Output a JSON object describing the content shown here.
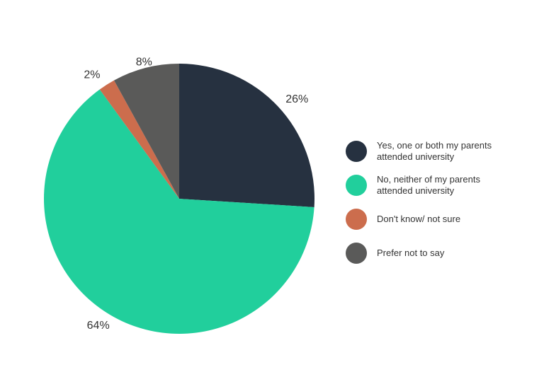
{
  "chart_data": {
    "type": "pie",
    "slices": [
      {
        "label": "Yes, one or both my parents\nattended university",
        "value": 26,
        "display": "26%",
        "color": "#263140"
      },
      {
        "label": "No, neither of my parents\nattended university",
        "value": 64,
        "display": "64%",
        "color": "#21cf9c"
      },
      {
        "label": "Don't know/ not sure",
        "value": 2,
        "display": "2%",
        "color": "#cc6d4d"
      },
      {
        "label": "Prefer not to say",
        "value": 8,
        "display": "8%",
        "color": "#5a5a59"
      }
    ],
    "legend_placement": "right"
  }
}
